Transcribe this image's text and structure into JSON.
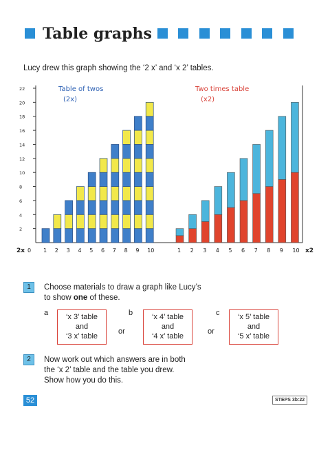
{
  "header": {
    "title": "Table graphs",
    "accent": "#2a8fd6"
  },
  "intro": "Lucy drew this graph showing the ‘2 x’ and ‘x 2’ tables.",
  "chart_data": {
    "type": "bar",
    "ylim": [
      0,
      22
    ],
    "y_ticks": [
      "2",
      "4",
      "6",
      "8",
      "10",
      "12",
      "14",
      "16",
      "18",
      "20",
      "22"
    ],
    "y_axis_start_label": "2x",
    "zero_label": "0",
    "left": {
      "title": "Table of twos",
      "subtitle": "(2x)",
      "categories": [
        "1",
        "2",
        "3",
        "4",
        "5",
        "6",
        "7",
        "8",
        "9",
        "10"
      ],
      "values": [
        2,
        4,
        6,
        8,
        10,
        12,
        14,
        16,
        18,
        20
      ],
      "colors": [
        "#3f7fc9",
        "#f2e84a"
      ]
    },
    "right": {
      "title": "Two times table",
      "subtitle": "(x2)",
      "categories": [
        "1",
        "2",
        "3",
        "4",
        "5",
        "6",
        "7",
        "8",
        "9",
        "10"
      ],
      "end_label": "x2",
      "red_values": [
        1,
        2,
        3,
        4,
        5,
        6,
        7,
        8,
        9,
        10
      ],
      "values": [
        2,
        4,
        6,
        8,
        10,
        12,
        14,
        16,
        18,
        20
      ],
      "colors": [
        "#e0442d",
        "#4cb5dc"
      ]
    }
  },
  "questions": [
    {
      "number": "1",
      "text_line1": "Choose materials to draw a graph like Lucy’s",
      "text_line2_pre": "to show ",
      "text_line2_bold": "one",
      "text_line2_post": " of these.",
      "options": [
        {
          "letter": "a",
          "line1": "‘x 3’ table",
          "line2": "and",
          "line3": "‘3 x’ table"
        },
        {
          "letter": "b",
          "line1": "‘x 4’ table",
          "line2": "and",
          "line3": "‘4 x’ table"
        },
        {
          "letter": "c",
          "line1": "‘x 5’ table",
          "line2": "and",
          "line3": "‘5 x’ table"
        }
      ],
      "or_label": "or"
    },
    {
      "number": "2",
      "line1": "Now work out which answers are in both",
      "line2": "the ‘x 2’ table and the table you drew.",
      "line3": "Show how you do this."
    }
  ],
  "footer": {
    "page_number": "52",
    "code": "STEPS 3b:22"
  }
}
